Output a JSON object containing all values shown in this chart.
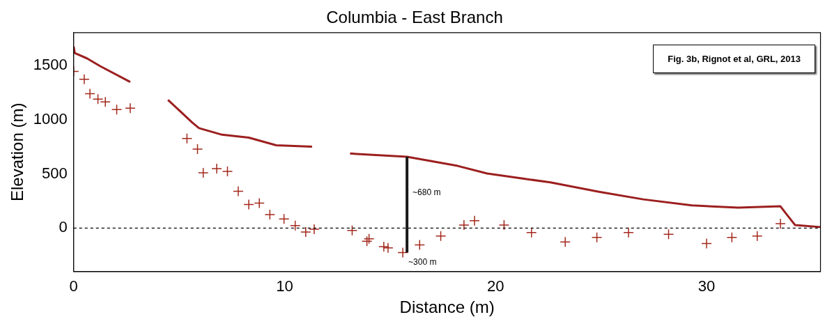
{
  "chart_data": {
    "type": "line",
    "title": "Columbia - East Branch",
    "xlabel": "Distance (m)",
    "ylabel": "Elevation (m)",
    "xlim": [
      0,
      35.4
    ],
    "xticks": [
      0,
      10,
      20,
      30
    ],
    "ylim": [
      -400,
      1800
    ],
    "yticks": [
      0,
      500,
      1000,
      1500
    ],
    "grid": false,
    "legend": false,
    "series": [
      {
        "color": "#9c1f1f",
        "line_style": "solid",
        "marker": "none",
        "x": [
          0,
          0.05,
          0.63,
          1.26,
          2.68,
          3.6,
          4.47,
          5.62,
          5.94,
          7.03,
          8.3,
          9.6,
          11.3,
          12.2,
          13.1,
          15.8,
          18.2,
          19.6,
          22.6,
          24.9,
          27.0,
          29.3,
          31.5,
          33.5,
          33.8,
          34.2,
          35.4
        ],
        "values": [
          1672,
          1612,
          1563,
          1491,
          1346,
          null,
          1181,
          972,
          921,
          860,
          833,
          763,
          750,
          null,
          687,
          657,
          573,
          503,
          421,
          335,
          265,
          209,
          189,
          201,
          125,
          28,
          10
        ]
      },
      {
        "type": "scatter",
        "color": "#a3281c",
        "marker": "cross",
        "x": [
          0,
          0.5,
          0.77,
          1.15,
          1.5,
          2.04,
          2.68,
          5.37,
          5.87,
          6.14,
          6.78,
          7.29,
          7.8,
          8.3,
          8.8,
          9.3,
          9.97,
          10.5,
          11.0,
          11.4,
          13.2,
          13.9,
          14.0,
          14.7,
          14.9,
          15.6,
          16.4,
          17.4,
          18.5,
          19.0,
          20.4,
          21.7,
          23.3,
          24.8,
          26.3,
          28.2,
          30.0,
          31.2,
          32.4,
          33.5
        ],
        "values": [
          1442,
          1371,
          1238,
          1187,
          1162,
          1092,
          1105,
          826,
          727,
          510,
          548,
          522,
          339,
          218,
          231,
          124,
          85,
          24,
          -35,
          -10,
          -22,
          -121,
          -98,
          -170,
          -181,
          -225,
          -155,
          -73,
          28,
          69,
          28,
          -41,
          -127,
          -85,
          -41,
          -57,
          -142,
          -85,
          -73,
          41
        ]
      }
    ],
    "ref_lines": [
      {
        "axis": "y",
        "value": 0,
        "color": "#000000",
        "line_style": "dashed"
      }
    ],
    "annotations": [
      "~680 m",
      {
        "text": "~300 m",
        "x": 15.8,
        "y": -225
      },
      "Fig. 3b, Rignot et al, GRL, 2013"
    ]
  }
}
